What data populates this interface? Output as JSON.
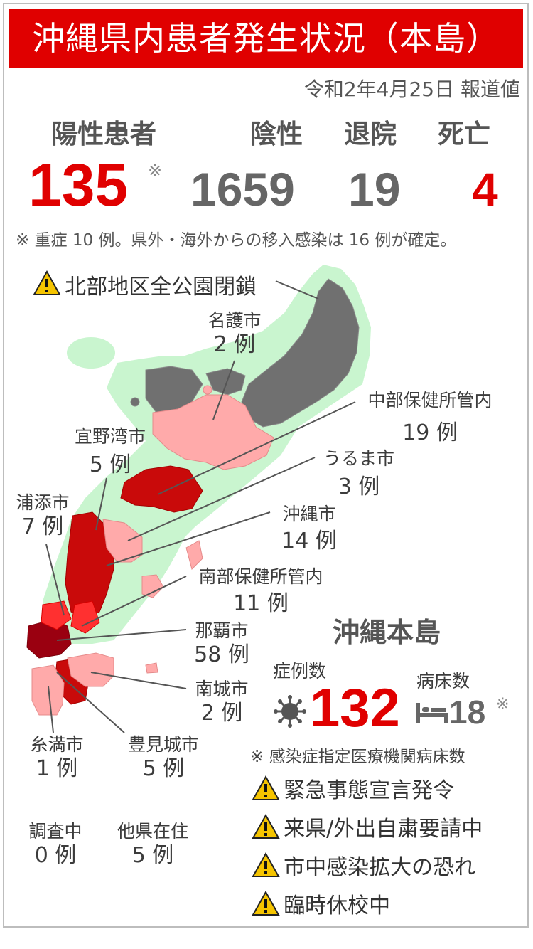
{
  "title": "沖縄県内患者発生状況（本島）",
  "date_note": "令和2年4月25日 報道値",
  "stats": {
    "positive_label": "陽性患者",
    "positive_value": "135",
    "positive_mark": "※",
    "negative_label": "陰性",
    "negative_value": "1659",
    "discharged_label": "退院",
    "discharged_value": "19",
    "deaths_label": "死亡",
    "deaths_value": "4"
  },
  "footnote": "※ 重症 10 例。県外・海外からの移入感染は 16 例が確定。",
  "map_warning": "北部地区全公園閉鎖",
  "regions": [
    {
      "name": "名護市",
      "count": "2 例"
    },
    {
      "name": "中部保健所管内",
      "count": "19 例"
    },
    {
      "name": "宜野湾市",
      "count": "5 例"
    },
    {
      "name": "うるま市",
      "count": "3 例"
    },
    {
      "name": "浦添市",
      "count": "7 例"
    },
    {
      "name": "沖縄市",
      "count": "14 例"
    },
    {
      "name": "南部保健所管内",
      "count": "11 例"
    },
    {
      "name": "那覇市",
      "count": "58 例"
    },
    {
      "name": "南城市",
      "count": "2 例"
    },
    {
      "name": "糸満市",
      "count": "1 例"
    },
    {
      "name": "豊見城市",
      "count": "5 例"
    },
    {
      "name": "調査中",
      "count": "0 例"
    },
    {
      "name": "他県在住",
      "count": "5 例"
    }
  ],
  "main_island": {
    "heading": "沖縄本島",
    "cases_label": "症例数",
    "cases_value": "132",
    "beds_label": "病床数",
    "beds_value": "18",
    "beds_mark": "※",
    "beds_note": "※ 感染症指定医療機関病床数"
  },
  "alerts": [
    "緊急事態宣言発令",
    "来県/外出自粛要請中",
    "市中感染拡大の恐れ",
    "臨時休校中"
  ],
  "colors": {
    "accent_red": "#e00000",
    "number_gray": "#666666",
    "north_gray": "#707070",
    "coast_green": "#c9f5cf",
    "light_pink": "#ffaaaa",
    "mid_red": "#d10000",
    "dark_red": "#9a0010",
    "warning_yellow": "#f5c400"
  },
  "icons": [
    "warning-icon",
    "virus-icon",
    "bed-icon"
  ]
}
